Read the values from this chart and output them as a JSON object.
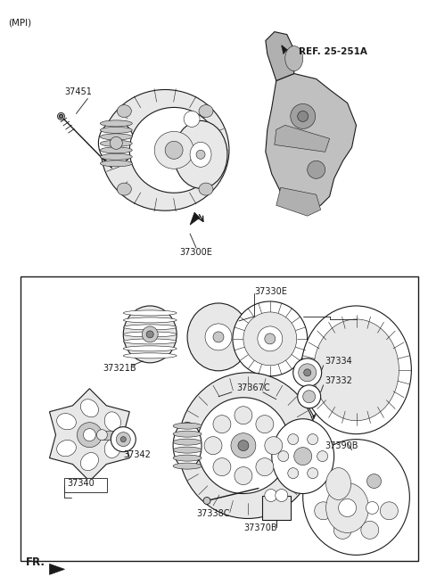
{
  "bg_color": "#ffffff",
  "fig_width": 4.8,
  "fig_height": 6.56,
  "dpi": 100,
  "line_color": "#1a1a1a",
  "label_fontsize": 6.5,
  "top_label": "(MPI)",
  "fr_label": "FR.",
  "ref_label": "REF. 25-251A",
  "label_37451": "37451",
  "label_37300E": "37300E",
  "label_37330E": "37330E",
  "label_37334": "37334",
  "label_37332": "37332",
  "label_37321B": "37321B",
  "label_37367C": "37367C",
  "label_37342": "37342",
  "label_37340": "37340",
  "label_37338C": "37338C",
  "label_37370B": "37370B",
  "label_37390B": "37390B",
  "light_gray": "#e8e8e8",
  "mid_gray": "#c8c8c8",
  "dark_gray": "#888888",
  "lw_main": 0.8,
  "lw_thin": 0.4,
  "lw_thick": 1.2
}
